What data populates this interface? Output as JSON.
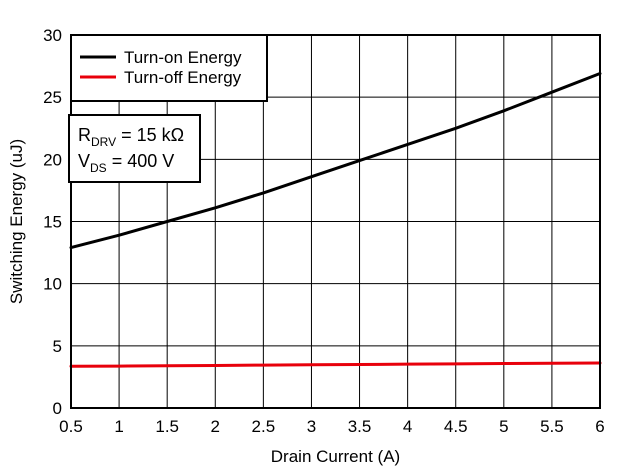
{
  "chart_data": {
    "type": "line",
    "title": "",
    "xlabel": "Drain Current (A)",
    "ylabel": "Switching Energy (uJ)",
    "xlim": [
      0.5,
      6
    ],
    "ylim": [
      0,
      30
    ],
    "grid": true,
    "legend_position": "top-left",
    "x_ticks": [
      "0.5",
      "1",
      "1.5",
      "2",
      "2.5",
      "3",
      "3.5",
      "4",
      "4.5",
      "5",
      "5.5",
      "6"
    ],
    "y_ticks": [
      "0",
      "5",
      "10",
      "15",
      "20",
      "25",
      "30"
    ],
    "x": [
      0.5,
      1,
      1.5,
      2,
      2.5,
      3,
      3.5,
      4,
      4.5,
      5,
      5.5,
      6
    ],
    "series": [
      {
        "name": "Turn-on Energy",
        "color": "#000000",
        "values": [
          12.9,
          13.9,
          15.0,
          16.1,
          17.3,
          18.6,
          19.9,
          21.2,
          22.5,
          23.9,
          25.4,
          26.9
        ]
      },
      {
        "name": "Turn-off Energy",
        "color": "#e8000b",
        "values": [
          3.35,
          3.37,
          3.4,
          3.42,
          3.45,
          3.48,
          3.5,
          3.53,
          3.55,
          3.58,
          3.6,
          3.62
        ]
      }
    ],
    "annotation": {
      "line1_main": "R",
      "line1_sub": "DRV",
      "line1_value": " = 15 kΩ",
      "line2_main": "V",
      "line2_sub": "DS",
      "line2_value": " = 400 V"
    }
  }
}
